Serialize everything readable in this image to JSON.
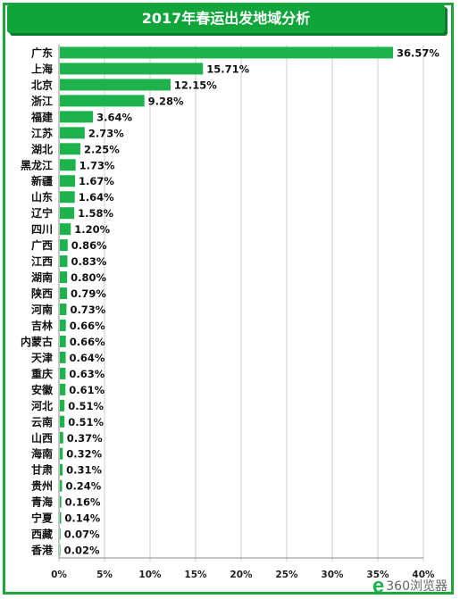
{
  "colors": {
    "bar": "#1db24c",
    "frame": "#1fa33b",
    "title_bg": "#10a53a",
    "grid": "#cccccc"
  },
  "chart_data": {
    "type": "bar",
    "orientation": "horizontal",
    "title": "2017年春运出发地域分析",
    "categories": [
      "广东",
      "上海",
      "北京",
      "浙江",
      "福建",
      "江苏",
      "湖北",
      "黑龙江",
      "新疆",
      "山东",
      "辽宁",
      "四川",
      "广西",
      "江西",
      "湖南",
      "陕西",
      "河南",
      "吉林",
      "内蒙古",
      "天津",
      "重庆",
      "安徽",
      "河北",
      "云南",
      "山西",
      "海南",
      "甘肃",
      "贵州",
      "青海",
      "宁夏",
      "西藏",
      "香港"
    ],
    "values": [
      36.57,
      15.71,
      12.15,
      9.28,
      3.64,
      2.73,
      2.25,
      1.73,
      1.67,
      1.64,
      1.58,
      1.2,
      0.86,
      0.83,
      0.8,
      0.79,
      0.73,
      0.66,
      0.66,
      0.64,
      0.63,
      0.61,
      0.51,
      0.51,
      0.37,
      0.32,
      0.31,
      0.24,
      0.16,
      0.14,
      0.07,
      0.02
    ],
    "value_labels": [
      "36.57%",
      "15.71%",
      "12.15%",
      "9.28%",
      "3.64%",
      "2.73%",
      "2.25%",
      "1.73%",
      "1.67%",
      "1.64%",
      "1.58%",
      "1.20%",
      "0.86%",
      "0.83%",
      "0.80%",
      "0.79%",
      "0.73%",
      "0.66%",
      "0.66%",
      "0.64%",
      "0.63%",
      "0.61%",
      "0.51%",
      "0.51%",
      "0.37%",
      "0.32%",
      "0.31%",
      "0.24%",
      "0.16%",
      "0.14%",
      "0.07%",
      "0.02%"
    ],
    "xticks": [
      "0%",
      "5%",
      "10%",
      "15%",
      "20%",
      "25%",
      "30%",
      "35%",
      "40%"
    ],
    "xlim": [
      0,
      40
    ],
    "grid": "vertical"
  },
  "watermark": {
    "logo": "e",
    "text": "360浏览器"
  }
}
